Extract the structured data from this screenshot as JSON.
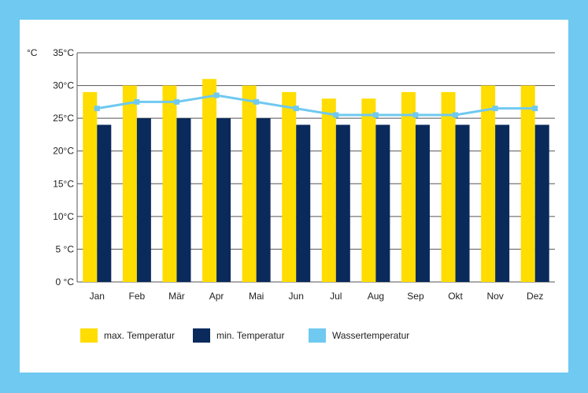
{
  "chart_data": {
    "type": "bar",
    "unit_label": "°C",
    "categories": [
      "Jan",
      "Feb",
      "Mär",
      "Apr",
      "Mai",
      "Jun",
      "Jul",
      "Aug",
      "Sep",
      "Okt",
      "Nov",
      "Dez"
    ],
    "series": [
      {
        "name": "max. Temperatur",
        "type": "bar",
        "color": "#ffdd00",
        "values": [
          29,
          30,
          30,
          31,
          30,
          29,
          28,
          28,
          29,
          29,
          30,
          30
        ]
      },
      {
        "name": "min. Temperatur",
        "type": "bar",
        "color": "#0a2a5c",
        "values": [
          24,
          25,
          25,
          25,
          25,
          24,
          24,
          24,
          24,
          24,
          24,
          24
        ]
      },
      {
        "name": "Wassertemperatur",
        "type": "line",
        "color": "#6fc9f0",
        "values": [
          26.5,
          27.5,
          27.5,
          28.5,
          27.5,
          26.5,
          25.5,
          25.5,
          25.5,
          25.5,
          26.5,
          26.5
        ]
      }
    ],
    "y_ticks": [
      "0 °C",
      "5 °C",
      "10°C",
      "15°C",
      "20°C",
      "25°C",
      "30°C",
      "35°C"
    ],
    "ylim": [
      0,
      35
    ],
    "grid": true,
    "legend": "bottom-left"
  }
}
